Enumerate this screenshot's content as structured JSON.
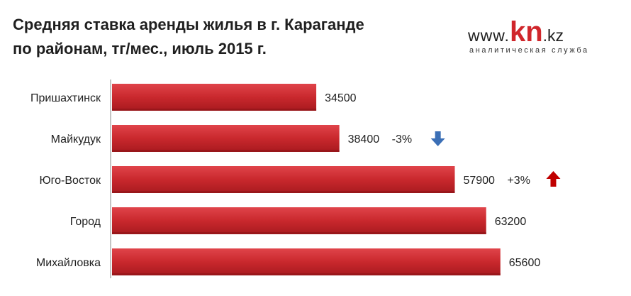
{
  "title_line1": "Средняя ставка аренды жилья в г. Караганде",
  "title_line2": "по районам, тг/мес., июль 2015 г.",
  "logo": {
    "prefix": "www.",
    "brand": "kn",
    "suffix": ".kz",
    "tagline": "аналитическая служба",
    "brand_color": "#d0262b"
  },
  "chart_data": {
    "type": "bar",
    "orientation": "horizontal",
    "categories": [
      "Пришахтинск",
      "Майкудук",
      "Юго-Восток",
      "Город",
      "Михайловка"
    ],
    "values": [
      34500,
      38400,
      57900,
      63200,
      65600
    ],
    "changes": [
      "",
      "-3%",
      "+3%",
      "",
      ""
    ],
    "change_icons": [
      "",
      "arrow-down-icon",
      "arrow-up-icon",
      "",
      ""
    ],
    "xlim": [
      0,
      80000
    ],
    "bar_color": "#c9282d",
    "down_color": "#3b6fb6",
    "up_color": "#c00000",
    "grid": false,
    "legend": "none"
  }
}
